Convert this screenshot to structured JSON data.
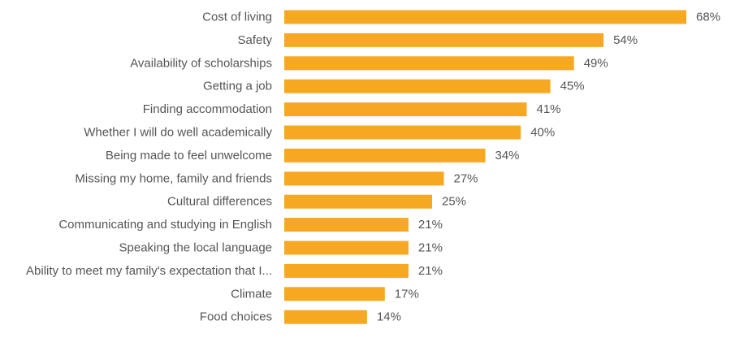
{
  "chart_data": {
    "type": "bar",
    "orientation": "horizontal",
    "categories": [
      "Cost of living",
      "Safety",
      "Availability of scholarships",
      "Getting a job",
      "Finding accommodation",
      "Whether I will do well academically",
      "Being made to feel unwelcome",
      "Missing my home, family and friends",
      "Cultural differences",
      "Communicating and studying in English",
      "Speaking the local language",
      "Ability to meet my family's expectation that I...",
      "Climate",
      "Food choices"
    ],
    "values": [
      68,
      54,
      49,
      45,
      41,
      40,
      34,
      27,
      25,
      21,
      21,
      21,
      17,
      14
    ],
    "value_labels": [
      "68%",
      "54%",
      "49%",
      "45%",
      "41%",
      "40%",
      "34%",
      "27%",
      "25%",
      "21%",
      "21%",
      "21%",
      "17%",
      "14%"
    ],
    "unit": "%",
    "title": "",
    "xlabel": "",
    "ylabel": "",
    "xlim": [
      0,
      68
    ],
    "grid": false,
    "legend": "none",
    "bar_color": "#F7A823"
  }
}
